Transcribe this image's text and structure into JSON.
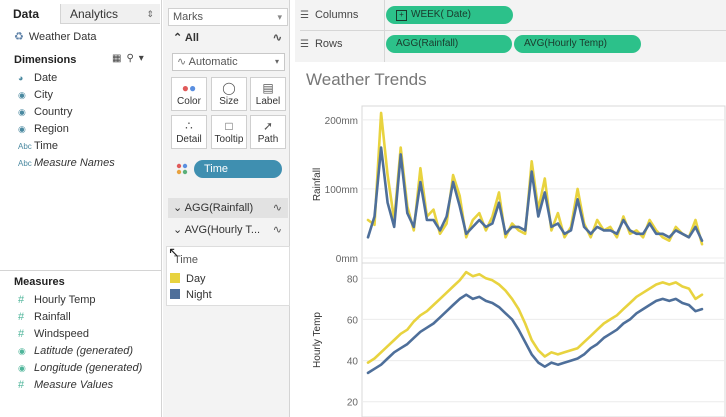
{
  "left_pane": {
    "tab_data": "Data",
    "tab_analytics": "Analytics",
    "data_source": "Weather Data",
    "dimensions_label": "Dimensions",
    "dimensions": [
      {
        "name": "Date",
        "icon": "calendar-icon",
        "italic": false
      },
      {
        "name": "City",
        "icon": "globe-icon",
        "italic": false
      },
      {
        "name": "Country",
        "icon": "globe-icon",
        "italic": false
      },
      {
        "name": "Region",
        "icon": "globe-icon",
        "italic": false
      },
      {
        "name": "Time",
        "icon": "abc-icon",
        "italic": false
      },
      {
        "name": "Measure Names",
        "icon": "abc-icon",
        "italic": true
      }
    ],
    "measures_label": "Measures",
    "measures": [
      {
        "name": "Hourly Temp",
        "icon": "hash-icon",
        "italic": false
      },
      {
        "name": "Rainfall",
        "icon": "hash-icon",
        "italic": false
      },
      {
        "name": "Windspeed",
        "icon": "hash-icon",
        "italic": false
      },
      {
        "name": "Latitude (generated)",
        "icon": "globe-icon",
        "italic": true
      },
      {
        "name": "Longitude (generated)",
        "icon": "globe-icon",
        "italic": true
      },
      {
        "name": "Measure Values",
        "icon": "hash-icon",
        "italic": true
      }
    ]
  },
  "marks": {
    "header": "Marks",
    "all_label": "All",
    "mark_type": "Automatic",
    "buttons": [
      "Color",
      "Size",
      "Label",
      "Detail",
      "Tooltip",
      "Path"
    ],
    "time_pill": "Time",
    "agg_rainfall": "AGG(Rainfall)",
    "avg_hourly": "AVG(Hourly T...",
    "legend_title": "Time",
    "legend_items": [
      {
        "label": "Day",
        "color": "#e8d33f"
      },
      {
        "label": "Night",
        "color": "#4e6f9a"
      }
    ]
  },
  "shelves": {
    "columns_label": "Columns",
    "rows_label": "Rows",
    "columns_pill": "WEEK( Date)",
    "rows_pills": [
      "AGG(Rainfall)",
      "AVG(Hourly Temp)"
    ]
  },
  "viz": {
    "title": "Weather Trends",
    "accent_day": "#e8d33f",
    "accent_night": "#4e6f9a"
  },
  "chart_data": {
    "type": "line",
    "title": "Weather Trends",
    "x": [
      1,
      2,
      3,
      4,
      5,
      6,
      7,
      8,
      9,
      10,
      11,
      12,
      13,
      14,
      15,
      16,
      17,
      18,
      19,
      20,
      21,
      22,
      23,
      24,
      25,
      26,
      27,
      28,
      29,
      30,
      31,
      32,
      33,
      34,
      35,
      36,
      37,
      38,
      39,
      40,
      41,
      42,
      43,
      44,
      45,
      46,
      47,
      48,
      49,
      50,
      51,
      52
    ],
    "panels": [
      {
        "ylabel": "Rainfall",
        "ylim": [
          0,
          220
        ],
        "ticks": [
          {
            "v": 0,
            "label": "0mm"
          },
          {
            "v": 100,
            "label": "100mm"
          },
          {
            "v": 200,
            "label": "200mm"
          }
        ],
        "series": [
          {
            "name": "Day",
            "values": [
              55,
              48,
              210,
              120,
              55,
              160,
              75,
              40,
              130,
              60,
              70,
              35,
              50,
              120,
              90,
              30,
              55,
              65,
              40,
              60,
              95,
              30,
              50,
              40,
              35,
              140,
              70,
              115,
              40,
              65,
              30,
              45,
              100,
              50,
              30,
              55,
              40,
              45,
              30,
              60,
              35,
              40,
              30,
              55,
              40,
              30,
              25,
              45,
              35,
              30,
              55,
              20
            ]
          },
          {
            "name": "Night",
            "values": [
              30,
              60,
              160,
              80,
              45,
              150,
              65,
              45,
              110,
              55,
              55,
              40,
              60,
              110,
              75,
              35,
              45,
              55,
              45,
              50,
              80,
              35,
              45,
              45,
              40,
              125,
              60,
              95,
              45,
              50,
              35,
              40,
              85,
              45,
              35,
              45,
              40,
              40,
              35,
              55,
              40,
              35,
              35,
              50,
              35,
              35,
              30,
              40,
              35,
              30,
              45,
              25
            ]
          }
        ]
      },
      {
        "ylabel": "Hourly Temp",
        "ylim": [
          15,
          85
        ],
        "ticks": [
          {
            "v": 20,
            "label": "20"
          },
          {
            "v": 40,
            "label": "40"
          },
          {
            "v": 60,
            "label": "60"
          },
          {
            "v": 80,
            "label": "80"
          }
        ],
        "series": [
          {
            "name": "Day",
            "values": [
              39,
              41,
              44,
              47,
              50,
              53,
              55,
              59,
              62,
              64,
              67,
              70,
              73,
              76,
              79,
              83,
              81,
              82,
              80,
              79,
              77,
              74,
              70,
              65,
              58,
              50,
              45,
              42,
              44,
              43,
              44,
              45,
              46,
              49,
              52,
              55,
              58,
              60,
              62,
              65,
              68,
              71,
              73,
              75,
              77,
              78,
              77,
              78,
              76,
              75,
              70,
              72
            ]
          },
          {
            "name": "Night",
            "values": [
              34,
              36,
              38,
              41,
              44,
              46,
              48,
              51,
              54,
              56,
              58,
              61,
              64,
              67,
              70,
              72,
              70,
              71,
              69,
              68,
              66,
              63,
              60,
              55,
              49,
              43,
              39,
              37,
              39,
              38,
              39,
              40,
              41,
              43,
              46,
              48,
              51,
              53,
              55,
              58,
              60,
              63,
              65,
              67,
              69,
              70,
              69,
              70,
              68,
              67,
              64,
              65
            ]
          }
        ]
      }
    ]
  }
}
